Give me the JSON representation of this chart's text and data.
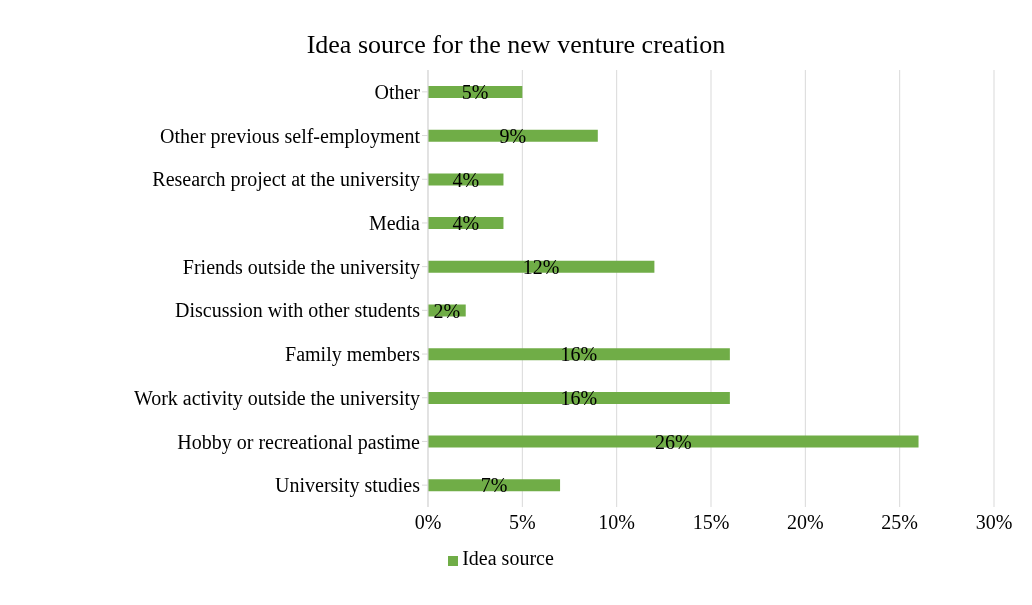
{
  "chart_data": {
    "type": "bar",
    "orientation": "horizontal",
    "title": "Idea source for the new venture creation",
    "categories": [
      "Other",
      "Other previous self-employment",
      "Research project at the university",
      "Media",
      "Friends outside the university",
      "Discussion with other students",
      "Family members",
      "Work activity outside the university",
      "Hobby or recreational pastime",
      "University studies"
    ],
    "series": [
      {
        "name": "Idea source",
        "color": "#70ad47",
        "values": [
          5,
          9,
          4,
          4,
          12,
          2,
          16,
          16,
          26,
          7
        ],
        "value_labels": [
          "5%",
          "9%",
          "4%",
          "4%",
          "12%",
          "2%",
          "16%",
          "16%",
          "26%",
          "7%"
        ]
      }
    ],
    "xlim": [
      0,
      30
    ],
    "xticks": [
      {
        "value": 0,
        "label": "0%"
      },
      {
        "value": 5,
        "label": "5%"
      },
      {
        "value": 10,
        "label": "10%"
      },
      {
        "value": 15,
        "label": "15%"
      },
      {
        "value": 20,
        "label": "20%"
      },
      {
        "value": 25,
        "label": "25%"
      },
      {
        "value": 30,
        "label": "30%"
      }
    ],
    "grid": "x",
    "legend": "bottom"
  }
}
